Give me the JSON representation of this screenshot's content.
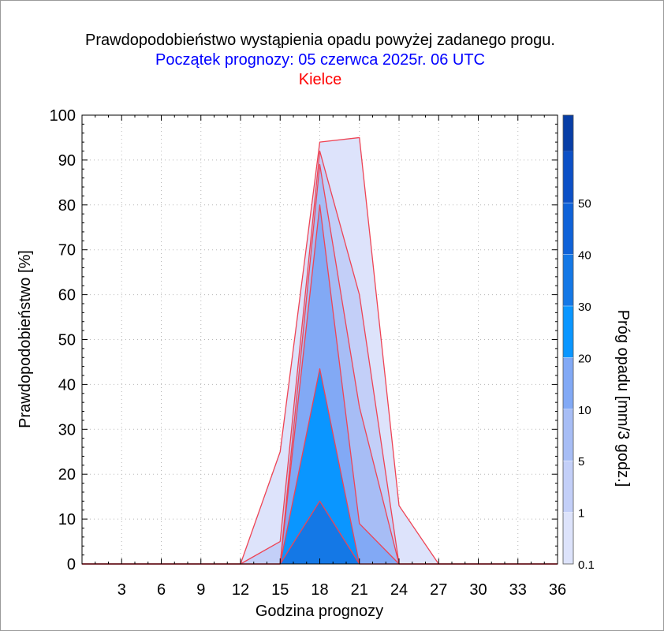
{
  "chart_data": {
    "type": "area",
    "title": "Prawdopodobieństwo wystąpienia opadu powyżej zadanego progu.",
    "subtitle": "Początek prognozy: 05 czerwca 2025r. 06 UTC",
    "location": "Kielce",
    "xlabel": "Godzina prognozy",
    "ylabel": "Prawdopodobieństwo [%]",
    "colorbar_label": "Próg opadu [mm/3 godz.]",
    "xlim": [
      0,
      36
    ],
    "ylim": [
      0,
      100
    ],
    "x_ticks": [
      "3",
      "6",
      "9",
      "12",
      "15",
      "18",
      "21",
      "24",
      "27",
      "30",
      "33",
      "36"
    ],
    "y_ticks": [
      "0",
      "10",
      "20",
      "30",
      "40",
      "50",
      "60",
      "70",
      "80",
      "90",
      "100"
    ],
    "x": [
      0,
      3,
      6,
      9,
      12,
      15,
      18,
      21,
      24,
      27,
      30,
      33,
      36
    ],
    "grid": true,
    "series": [
      {
        "name": "0.1",
        "color": "#dde3fb",
        "values": [
          0,
          0,
          0,
          0,
          0,
          25,
          94,
          95,
          13,
          0,
          0,
          0,
          0
        ]
      },
      {
        "name": "1",
        "color": "#c3cff8",
        "values": [
          0,
          0,
          0,
          0,
          0,
          5,
          92,
          60,
          0,
          0,
          0,
          0,
          0
        ]
      },
      {
        "name": "5",
        "color": "#a7bdf5",
        "values": [
          0,
          0,
          0,
          0,
          0,
          0,
          89,
          35,
          0,
          0,
          0,
          0,
          0
        ]
      },
      {
        "name": "10",
        "color": "#82a9f5",
        "values": [
          0,
          0,
          0,
          0,
          0,
          0,
          80,
          9,
          0,
          0,
          0,
          0,
          0
        ]
      },
      {
        "name": "20",
        "color": "#0a96ff",
        "values": [
          0,
          0,
          0,
          0,
          0,
          0,
          43.5,
          0,
          0,
          0,
          0,
          0,
          0
        ]
      },
      {
        "name": "30",
        "color": "#1478e6",
        "values": [
          0,
          0,
          0,
          0,
          0,
          0,
          14,
          0,
          0,
          0,
          0,
          0,
          0
        ]
      }
    ],
    "colorbar": {
      "tick_labels": [
        "0.1",
        "1",
        "5",
        "10",
        "20",
        "30",
        "40",
        "50"
      ],
      "colors": [
        "#dde3fb",
        "#c3cff8",
        "#a7bdf5",
        "#82a9f5",
        "#0a96ff",
        "#1478e6",
        "#0f62d8",
        "#0c50c6",
        "#083ea6"
      ]
    },
    "outline_color": "#ee4455"
  }
}
